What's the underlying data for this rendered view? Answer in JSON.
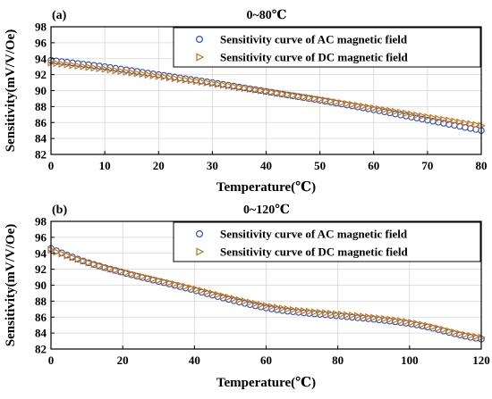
{
  "colors": {
    "ac": "#2f4fb0",
    "dc": "#b87323"
  },
  "chart_data": [
    {
      "type": "scatter",
      "panel_label": "(a)",
      "title": "0~80℃",
      "xlabel": "Temperature(℃)",
      "ylabel": "Sensitivity(mV/V/Oe)",
      "xlim": [
        0,
        80
      ],
      "ylim": [
        82,
        98
      ],
      "xticks": [
        0,
        10,
        20,
        30,
        40,
        50,
        60,
        70,
        80
      ],
      "yticks": [
        82,
        84,
        86,
        88,
        90,
        92,
        94,
        96,
        98
      ],
      "grid": true,
      "legend_position": "top-right",
      "x": [
        0,
        1,
        2,
        3,
        4,
        5,
        6,
        7,
        8,
        9,
        10,
        11,
        12,
        13,
        14,
        15,
        16,
        17,
        18,
        19,
        20,
        21,
        22,
        23,
        24,
        25,
        26,
        27,
        28,
        29,
        30,
        31,
        32,
        33,
        34,
        35,
        36,
        37,
        38,
        39,
        40,
        41,
        42,
        43,
        44,
        45,
        46,
        47,
        48,
        49,
        50,
        51,
        52,
        53,
        54,
        55,
        56,
        57,
        58,
        59,
        60,
        61,
        62,
        63,
        64,
        65,
        66,
        67,
        68,
        69,
        70,
        71,
        72,
        73,
        74,
        75,
        76,
        77,
        78,
        79,
        80
      ],
      "series": [
        {
          "name": "Sensitivity curve of AC magnetic field",
          "marker": "circle",
          "values": [
            93.8,
            93.72,
            93.64,
            93.56,
            93.48,
            93.4,
            93.32,
            93.24,
            93.16,
            93.08,
            93.0,
            92.9,
            92.8,
            92.7,
            92.6,
            92.5,
            92.4,
            92.3,
            92.2,
            92.1,
            92.0,
            91.9,
            91.8,
            91.7,
            91.6,
            91.5,
            91.4,
            91.3,
            91.2,
            91.1,
            91.0,
            90.89,
            90.78,
            90.67,
            90.56,
            90.45,
            90.34,
            90.23,
            90.12,
            90.01,
            89.9,
            89.79,
            89.68,
            89.57,
            89.46,
            89.35,
            89.24,
            89.13,
            89.02,
            88.91,
            88.8,
            88.68,
            88.56,
            88.44,
            88.32,
            88.2,
            88.08,
            87.96,
            87.84,
            87.72,
            87.6,
            87.47,
            87.34,
            87.21,
            87.08,
            86.95,
            86.82,
            86.69,
            86.56,
            86.43,
            86.3,
            86.17,
            86.04,
            85.91,
            85.78,
            85.65,
            85.52,
            85.39,
            85.26,
            85.13,
            85.0
          ]
        },
        {
          "name": "Sensitivity curve of DC magnetic field",
          "marker": "triangle-right",
          "values": [
            93.5,
            93.42,
            93.34,
            93.26,
            93.18,
            93.1,
            93.02,
            92.94,
            92.86,
            92.78,
            92.7,
            92.61,
            92.52,
            92.43,
            92.34,
            92.25,
            92.16,
            92.07,
            91.98,
            91.89,
            91.8,
            91.71,
            91.62,
            91.53,
            91.44,
            91.35,
            91.26,
            91.17,
            91.08,
            90.99,
            90.9,
            90.8,
            90.7,
            90.6,
            90.5,
            90.4,
            90.3,
            90.2,
            90.1,
            90.0,
            89.9,
            89.8,
            89.7,
            89.6,
            89.5,
            89.4,
            89.3,
            89.2,
            89.1,
            89.0,
            88.9,
            88.79,
            88.68,
            88.57,
            88.46,
            88.35,
            88.24,
            88.13,
            88.02,
            87.91,
            87.8,
            87.69,
            87.58,
            87.47,
            87.36,
            87.25,
            87.14,
            87.03,
            86.92,
            86.81,
            86.7,
            86.59,
            86.48,
            86.37,
            86.26,
            86.15,
            86.04,
            85.93,
            85.82,
            85.71,
            85.6
          ]
        }
      ]
    },
    {
      "type": "scatter",
      "panel_label": "(b)",
      "title": "0~120℃",
      "xlabel": "Temperature(℃)",
      "ylabel": "Sensitivity(mV/V/Oe)",
      "xlim": [
        0,
        120
      ],
      "ylim": [
        82,
        98
      ],
      "xticks": [
        0,
        20,
        40,
        60,
        80,
        100,
        120
      ],
      "yticks": [
        82,
        84,
        86,
        88,
        90,
        92,
        94,
        96,
        98
      ],
      "grid": true,
      "legend_position": "top-right",
      "x": [
        0,
        1.5,
        3,
        4.5,
        6,
        7.5,
        9,
        10.5,
        12,
        13.5,
        15,
        16.5,
        18,
        19.5,
        21,
        22.5,
        24,
        25.5,
        27,
        28.5,
        30,
        31.5,
        33,
        34.5,
        36,
        37.5,
        39,
        40.5,
        42,
        43.5,
        45,
        46.5,
        48,
        49.5,
        51,
        52.5,
        54,
        55.5,
        57,
        58.5,
        60,
        61.5,
        63,
        64.5,
        66,
        67.5,
        69,
        70.5,
        72,
        73.5,
        75,
        76.5,
        78,
        79.5,
        81,
        82.5,
        84,
        85.5,
        87,
        88.5,
        90,
        91.5,
        93,
        94.5,
        96,
        97.5,
        99,
        100.5,
        102,
        103.5,
        105,
        106.5,
        108,
        109.5,
        111,
        112.5,
        114,
        115.5,
        117,
        118.5,
        120
      ],
      "series": [
        {
          "name": "Sensitivity curve of AC magnetic field",
          "marker": "circle",
          "values": [
            94.6,
            94.32,
            94.05,
            93.78,
            93.52,
            93.27,
            93.03,
            92.81,
            92.6,
            92.4,
            92.2,
            92.02,
            91.84,
            91.66,
            91.48,
            91.3,
            91.13,
            90.97,
            90.81,
            90.64,
            90.48,
            90.32,
            90.15,
            89.99,
            89.82,
            89.65,
            89.48,
            89.3,
            89.12,
            88.94,
            88.76,
            88.58,
            88.4,
            88.23,
            88.06,
            87.89,
            87.73,
            87.57,
            87.42,
            87.28,
            87.15,
            87.03,
            86.93,
            86.83,
            86.74,
            86.67,
            86.6,
            86.53,
            86.47,
            86.41,
            86.35,
            86.29,
            86.23,
            86.17,
            86.11,
            86.05,
            85.98,
            85.92,
            85.86,
            85.8,
            85.73,
            85.66,
            85.58,
            85.5,
            85.42,
            85.33,
            85.23,
            85.13,
            85.02,
            84.89,
            84.75,
            84.6,
            84.43,
            84.26,
            84.09,
            83.92,
            83.76,
            83.61,
            83.47,
            83.35,
            83.25
          ]
        },
        {
          "name": "Sensitivity curve of DC magnetic field",
          "marker": "triangle-right",
          "values": [
            94.4,
            94.17,
            93.94,
            93.71,
            93.48,
            93.26,
            93.04,
            92.83,
            92.63,
            92.44,
            92.25,
            92.07,
            91.9,
            91.73,
            91.56,
            91.39,
            91.23,
            91.07,
            90.91,
            90.76,
            90.6,
            90.45,
            90.3,
            90.14,
            89.98,
            89.82,
            89.66,
            89.49,
            89.32,
            89.15,
            88.98,
            88.81,
            88.64,
            88.47,
            88.31,
            88.15,
            87.99,
            87.84,
            87.69,
            87.55,
            87.42,
            87.3,
            87.19,
            87.09,
            86.99,
            86.91,
            86.83,
            86.76,
            86.69,
            86.63,
            86.57,
            86.51,
            86.45,
            86.39,
            86.33,
            86.27,
            86.21,
            86.15,
            86.08,
            86.01,
            85.94,
            85.86,
            85.78,
            85.7,
            85.61,
            85.52,
            85.42,
            85.31,
            85.19,
            85.06,
            84.92,
            84.77,
            84.6,
            84.43,
            84.26,
            84.09,
            83.93,
            83.79,
            83.66,
            83.55,
            83.45
          ]
        }
      ]
    }
  ]
}
